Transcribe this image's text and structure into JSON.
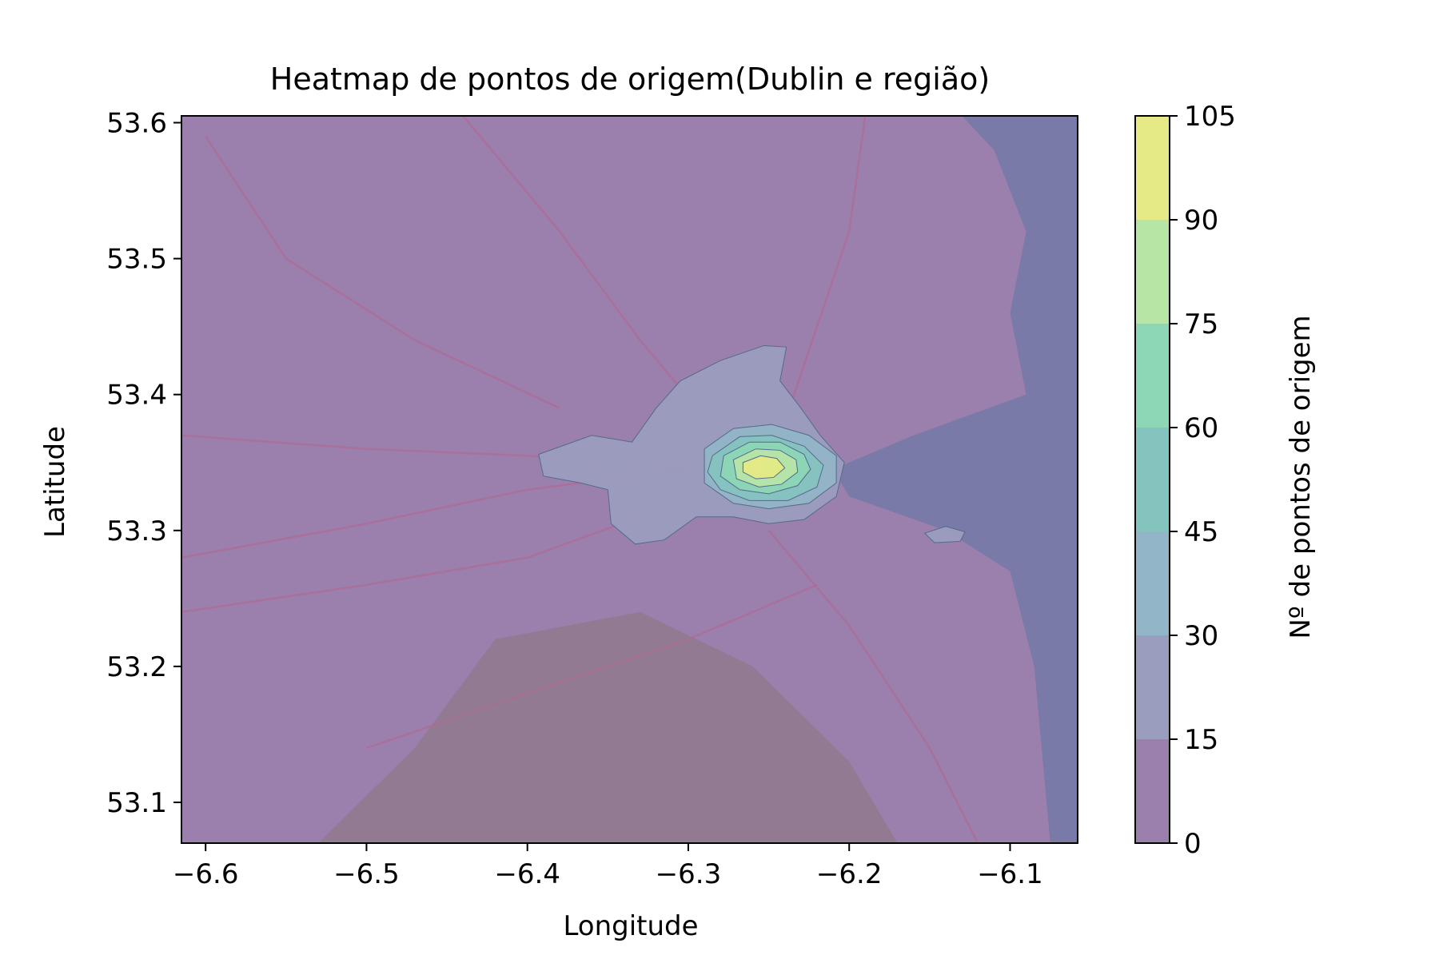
{
  "chart_data": {
    "type": "heatmap",
    "title": "Heatmap de pontos de origem(Dublin e região)",
    "xlabel": "Longitude",
    "ylabel": "Latitude",
    "xlim": [
      -6.615,
      -6.058
    ],
    "ylim": [
      53.07,
      53.605
    ],
    "x_ticks": [
      -6.6,
      -6.5,
      -6.4,
      -6.3,
      -6.2,
      -6.1
    ],
    "x_tick_labels": [
      "−6.6",
      "−6.5",
      "−6.4",
      "−6.3",
      "−6.2",
      "−6.1"
    ],
    "y_ticks": [
      53.1,
      53.2,
      53.3,
      53.4,
      53.5,
      53.6
    ],
    "y_tick_labels": [
      "53.1",
      "53.2",
      "53.3",
      "53.4",
      "53.5",
      "53.6"
    ],
    "grid": false,
    "colorbar": {
      "label": "Nº de pontos de origem",
      "levels": [
        0,
        15,
        30,
        45,
        60,
        75,
        90,
        105
      ],
      "tick_labels": [
        "0",
        "15",
        "30",
        "45",
        "60",
        "75",
        "90",
        "105"
      ],
      "colors": [
        "#9b7fac",
        "#9b9dbf",
        "#92b6c7",
        "#84c4bf",
        "#8dd7b6",
        "#b7e5a6",
        "#e6ea86"
      ]
    },
    "hotspot": {
      "lon": -6.258,
      "lat": 53.347,
      "peak_level": 105
    },
    "contours": [
      {
        "level": 15,
        "lonlat": [
          [
            -6.393,
            53.356
          ],
          [
            -6.36,
            53.37
          ],
          [
            -6.335,
            53.365
          ],
          [
            -6.32,
            53.39
          ],
          [
            -6.305,
            53.41
          ],
          [
            -6.28,
            53.425
          ],
          [
            -6.253,
            53.436
          ],
          [
            -6.239,
            53.435
          ],
          [
            -6.243,
            53.41
          ],
          [
            -6.23,
            53.39
          ],
          [
            -6.218,
            53.37
          ],
          [
            -6.203,
            53.35
          ],
          [
            -6.208,
            53.325
          ],
          [
            -6.228,
            53.308
          ],
          [
            -6.25,
            53.305
          ],
          [
            -6.272,
            53.31
          ],
          [
            -6.295,
            53.31
          ],
          [
            -6.315,
            53.293
          ],
          [
            -6.333,
            53.29
          ],
          [
            -6.348,
            53.305
          ],
          [
            -6.35,
            53.33
          ],
          [
            -6.367,
            53.335
          ],
          [
            -6.39,
            53.34
          ]
        ]
      },
      {
        "level": 30,
        "lonlat": [
          [
            -6.29,
            53.36
          ],
          [
            -6.272,
            53.375
          ],
          [
            -6.248,
            53.378
          ],
          [
            -6.225,
            53.37
          ],
          [
            -6.208,
            53.355
          ],
          [
            -6.208,
            53.335
          ],
          [
            -6.225,
            53.32
          ],
          [
            -6.25,
            53.316
          ],
          [
            -6.272,
            53.32
          ],
          [
            -6.29,
            53.335
          ]
        ]
      },
      {
        "level": 45,
        "lonlat": [
          [
            -6.285,
            53.355
          ],
          [
            -6.268,
            53.369
          ],
          [
            -6.248,
            53.37
          ],
          [
            -6.228,
            53.362
          ],
          [
            -6.216,
            53.348
          ],
          [
            -6.22,
            53.332
          ],
          [
            -6.238,
            53.322
          ],
          [
            -6.262,
            53.322
          ],
          [
            -6.28,
            53.33
          ],
          [
            -6.288,
            53.343
          ]
        ]
      },
      {
        "level": 60,
        "lonlat": [
          [
            -6.278,
            53.355
          ],
          [
            -6.262,
            53.365
          ],
          [
            -6.243,
            53.365
          ],
          [
            -6.228,
            53.356
          ],
          [
            -6.224,
            53.345
          ],
          [
            -6.232,
            53.333
          ],
          [
            -6.25,
            53.327
          ],
          [
            -6.268,
            53.33
          ],
          [
            -6.28,
            53.34
          ]
        ]
      },
      {
        "level": 75,
        "lonlat": [
          [
            -6.272,
            53.352
          ],
          [
            -6.258,
            53.36
          ],
          [
            -6.243,
            53.359
          ],
          [
            -6.233,
            53.352
          ],
          [
            -6.232,
            53.343
          ],
          [
            -6.242,
            53.334
          ],
          [
            -6.256,
            53.332
          ],
          [
            -6.27,
            53.338
          ]
        ]
      },
      {
        "level": 90,
        "lonlat": [
          [
            -6.266,
            53.35
          ],
          [
            -6.255,
            53.355
          ],
          [
            -6.245,
            53.353
          ],
          [
            -6.24,
            53.346
          ],
          [
            -6.247,
            53.339
          ],
          [
            -6.258,
            53.338
          ],
          [
            -6.266,
            53.343
          ]
        ]
      },
      {
        "level": 15,
        "lonlat": [
          [
            -6.153,
            53.298
          ],
          [
            -6.14,
            53.303
          ],
          [
            -6.128,
            53.299
          ],
          [
            -6.131,
            53.292
          ],
          [
            -6.147,
            53.291
          ]
        ]
      }
    ]
  }
}
